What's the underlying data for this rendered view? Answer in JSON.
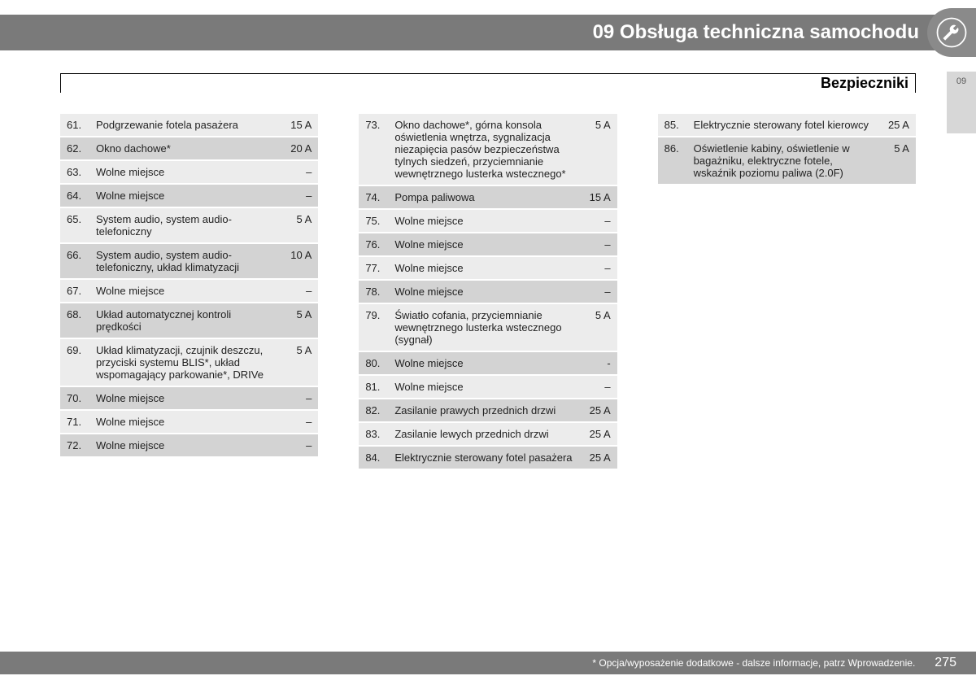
{
  "header": {
    "chapter_title": "09 Obsługa techniczna samochodu",
    "section_title": "Bezpieczniki",
    "side_tab": "09"
  },
  "footer": {
    "note": "* Opcja/wyposażenie dodatkowe - dalsze informacje, patrz Wprowadzenie.",
    "page_number": "275"
  },
  "columns": [
    {
      "rows": [
        {
          "num": "61.",
          "desc": "Podgrzewanie fotela pasażera",
          "amp": "15 A",
          "shade": "light"
        },
        {
          "num": "62.",
          "desc": "Okno dachowe*",
          "amp": "20 A",
          "shade": "dark"
        },
        {
          "num": "63.",
          "desc": "Wolne miejsce",
          "amp": "–",
          "shade": "light"
        },
        {
          "num": "64.",
          "desc": "Wolne miejsce",
          "amp": "–",
          "shade": "dark"
        },
        {
          "num": "65.",
          "desc": "System audio, system audio-telefoniczny",
          "amp": "5 A",
          "shade": "light"
        },
        {
          "num": "66.",
          "desc": "System audio, system audio-telefoniczny, układ klimatyzacji",
          "amp": "10 A",
          "shade": "dark"
        },
        {
          "num": "67.",
          "desc": "Wolne miejsce",
          "amp": "–",
          "shade": "light"
        },
        {
          "num": "68.",
          "desc": "Układ automatycznej kontroli prędkości",
          "amp": "5 A",
          "shade": "dark"
        },
        {
          "num": "69.",
          "desc": "Układ klimatyzacji, czujnik deszczu, przyciski systemu BLIS*, układ wspomagający parkowanie*, DRIVe",
          "amp": "5 A",
          "shade": "light"
        },
        {
          "num": "70.",
          "desc": "Wolne miejsce",
          "amp": "–",
          "shade": "dark"
        },
        {
          "num": "71.",
          "desc": "Wolne miejsce",
          "amp": "–",
          "shade": "light"
        },
        {
          "num": "72.",
          "desc": "Wolne miejsce",
          "amp": "–",
          "shade": "dark"
        }
      ]
    },
    {
      "rows": [
        {
          "num": "73.",
          "desc": "Okno dachowe*, górna konsola oświetlenia wnętrza, sygnalizacja niezapięcia pasów bezpieczeństwa tylnych siedzeń, przyciemnianie wewnętrznego lusterka wstecznego*",
          "amp": "5 A",
          "shade": "light"
        },
        {
          "num": "74.",
          "desc": "Pompa paliwowa",
          "amp": "15 A",
          "shade": "dark"
        },
        {
          "num": "75.",
          "desc": "Wolne miejsce",
          "amp": "–",
          "shade": "light"
        },
        {
          "num": "76.",
          "desc": "Wolne miejsce",
          "amp": "–",
          "shade": "dark"
        },
        {
          "num": "77.",
          "desc": "Wolne miejsce",
          "amp": "–",
          "shade": "light"
        },
        {
          "num": "78.",
          "desc": "Wolne miejsce",
          "amp": "–",
          "shade": "dark"
        },
        {
          "num": "79.",
          "desc": "Światło cofania, przyciemnianie wewnętrznego lusterka wstecznego (sygnał)",
          "amp": "5 A",
          "shade": "light"
        },
        {
          "num": "80.",
          "desc": "Wolne miejsce",
          "amp": "-",
          "shade": "dark"
        },
        {
          "num": "81.",
          "desc": "Wolne miejsce",
          "amp": "–",
          "shade": "light"
        },
        {
          "num": "82.",
          "desc": "Zasilanie prawych przednich drzwi",
          "amp": "25 A",
          "shade": "dark"
        },
        {
          "num": "83.",
          "desc": "Zasilanie lewych przednich drzwi",
          "amp": "25 A",
          "shade": "light"
        },
        {
          "num": "84.",
          "desc": "Elektrycznie sterowany fotel pasażera",
          "amp": "25 A",
          "shade": "dark"
        }
      ]
    },
    {
      "rows": [
        {
          "num": "85.",
          "desc": "Elektrycznie sterowany fotel kierowcy",
          "amp": "25 A",
          "shade": "light"
        },
        {
          "num": "86.",
          "desc": "Oświetlenie kabiny, oświetlenie w bagażniku, elektryczne fotele, wskaźnik poziomu paliwa (2.0F)",
          "amp": "5 A",
          "shade": "dark"
        }
      ]
    }
  ]
}
